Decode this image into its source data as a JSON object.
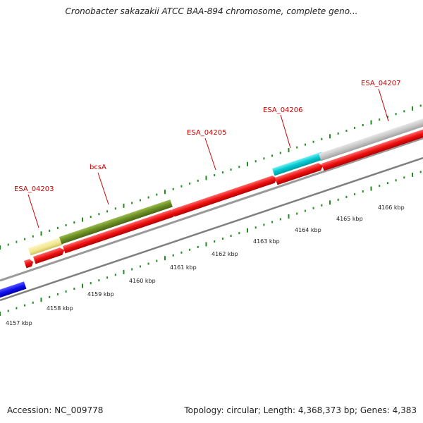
{
  "title": "Cronobacter sakazakii ATCC BAA-894 chromosome, complete geno...",
  "footer": {
    "accession": "Accession: NC_009778",
    "summary": "Topology: circular; Length: 4,368,373 bp; Genes: 4,383"
  },
  "scale_labels": [
    "4157 kbp",
    "4158 kbp",
    "4159 kbp",
    "4160 kbp",
    "4161 kbp",
    "4162 kbp",
    "4163 kbp",
    "4164 kbp",
    "4165 kbp",
    "4166 kbp"
  ],
  "gene_labels": [
    "ESA_04203",
    "bcsA",
    "ESA_04205",
    "ESA_04206",
    "ESA_04207"
  ],
  "colors": {
    "cds": "#ee1111",
    "bcsA": "#6b8e23",
    "ESA_04203": "#f0e68c",
    "ESA_04206": "#00c8d0",
    "ESA_04207": "#c8c8c8",
    "other_strand": "#1010ee",
    "ticks": "#228b22",
    "backbone": "#808080",
    "label": "#cc0000"
  }
}
